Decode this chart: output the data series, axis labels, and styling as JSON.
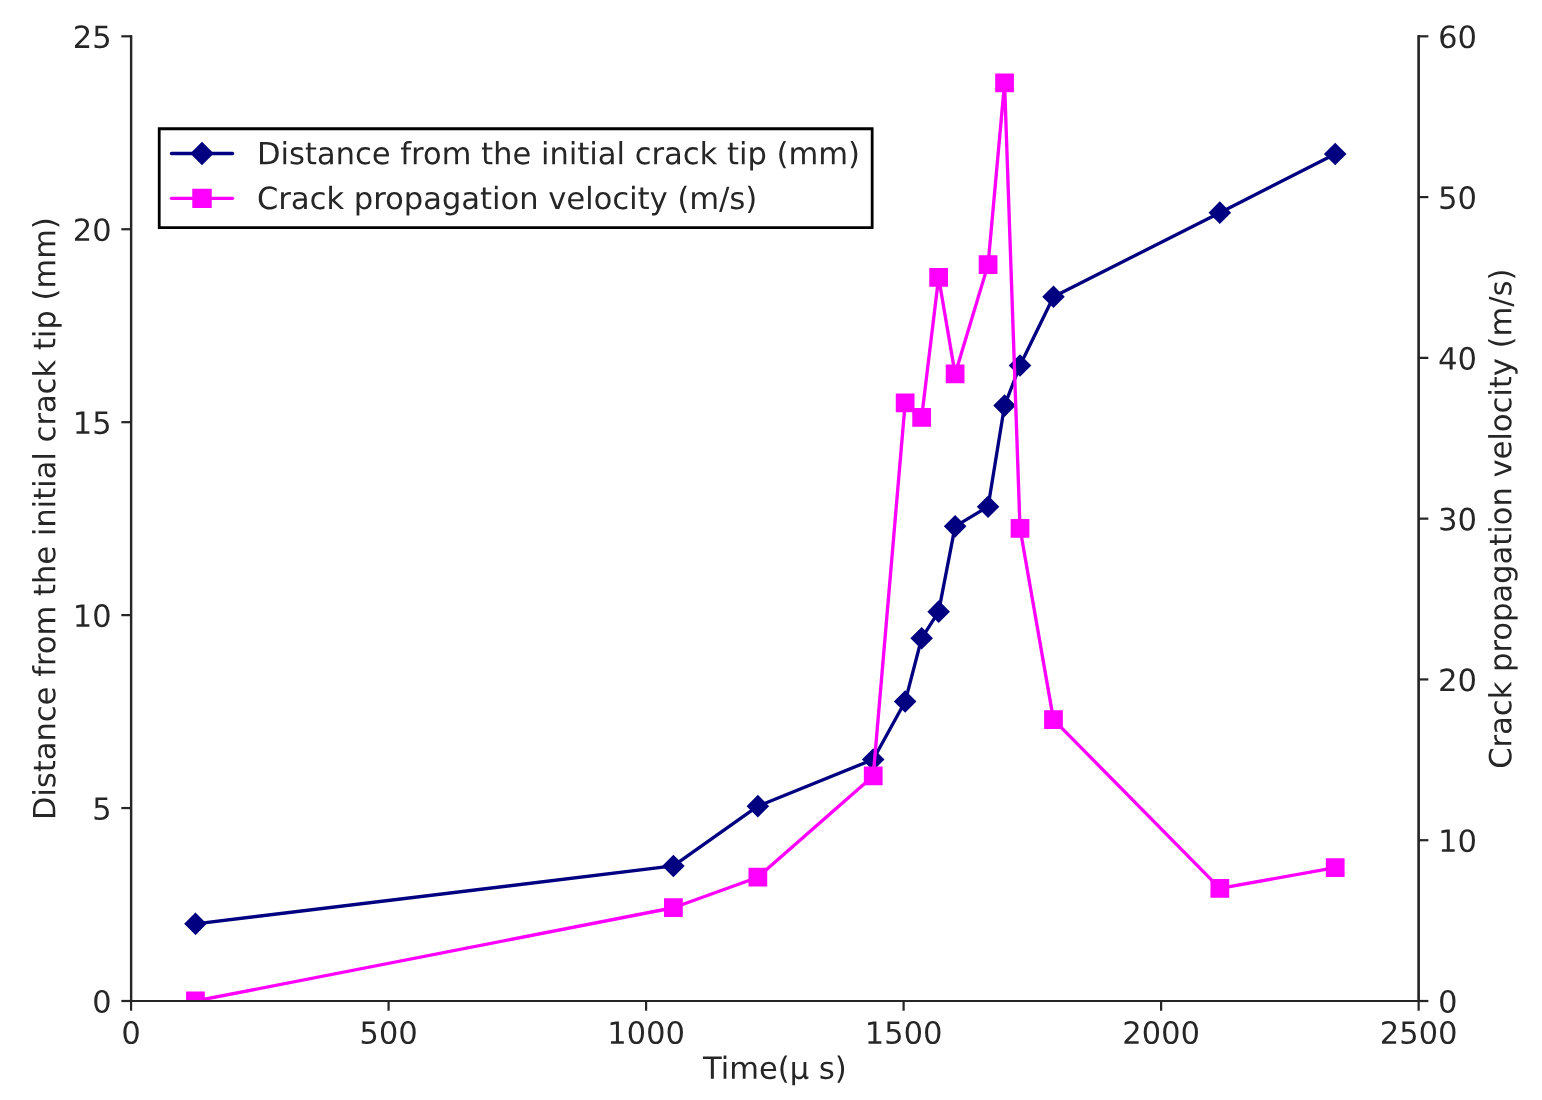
{
  "chart_data": {
    "type": "line",
    "xlabel": "Time(μ s)",
    "ylabel": "Distance from the initial crack tip (mm)",
    "y2label": "Crack propagation velocity (m/s)",
    "x": [
      125,
      1053,
      1217,
      1441,
      1503,
      1535,
      1568,
      1600,
      1664,
      1696,
      1726,
      1791,
      2114,
      2338
    ],
    "series": [
      {
        "name": "Distance from the initial crack tip (mm)",
        "color": "#000080",
        "marker": "diamond",
        "values": [
          2.0,
          3.5,
          5.05,
          6.26,
          7.76,
          9.4,
          10.09,
          12.3,
          12.81,
          15.43,
          16.47,
          18.25,
          20.43,
          21.95
        ]
      },
      {
        "name": "Crack propagation velocity (m/s)",
        "color": "#ff00ff",
        "marker": "square",
        "axis": "y2",
        "values": [
          0.0,
          5.8,
          7.7,
          14.0,
          37.2,
          36.3,
          45.0,
          39.0,
          45.8,
          57.1,
          29.4,
          17.5,
          7.0,
          8.3
        ]
      }
    ],
    "xlim": [
      0,
      2500
    ],
    "xticks": [
      0,
      500,
      1000,
      1500,
      2000,
      2500
    ],
    "ylim": [
      0,
      25
    ],
    "yticks": [
      0,
      5,
      10,
      15,
      20,
      25
    ],
    "y2lim": [
      0,
      60
    ],
    "y2ticks": [
      0,
      10,
      20,
      30,
      40,
      50,
      60
    ],
    "grid": false,
    "legend": "top left",
    "line_style": "solid"
  }
}
